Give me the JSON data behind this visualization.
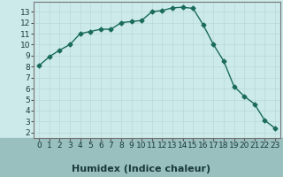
{
  "x": [
    0,
    1,
    2,
    3,
    4,
    5,
    6,
    7,
    8,
    9,
    10,
    11,
    12,
    13,
    14,
    15,
    16,
    17,
    18,
    19,
    20,
    21,
    22,
    23
  ],
  "y": [
    8.1,
    8.9,
    9.5,
    10.0,
    11.0,
    11.2,
    11.4,
    11.4,
    12.0,
    12.1,
    12.2,
    13.0,
    13.1,
    13.35,
    13.4,
    13.3,
    11.8,
    10.0,
    8.5,
    6.2,
    5.3,
    4.6,
    3.1,
    2.4
  ],
  "line_color": "#1a6b5a",
  "marker": "D",
  "marker_size": 2.5,
  "bg_color": "#cceaea",
  "label_bg_color": "#9abfbf",
  "xlabel": "Humidex (Indice chaleur)",
  "ylim": [
    1.5,
    13.9
  ],
  "xlim": [
    -0.5,
    23.5
  ],
  "yticks": [
    2,
    3,
    4,
    5,
    6,
    7,
    8,
    9,
    10,
    11,
    12,
    13
  ],
  "xticks": [
    0,
    1,
    2,
    3,
    4,
    5,
    6,
    7,
    8,
    9,
    10,
    11,
    12,
    13,
    14,
    15,
    16,
    17,
    18,
    19,
    20,
    21,
    22,
    23
  ],
  "xlabel_fontsize": 8,
  "tick_fontsize": 6.5,
  "linewidth": 1.0
}
